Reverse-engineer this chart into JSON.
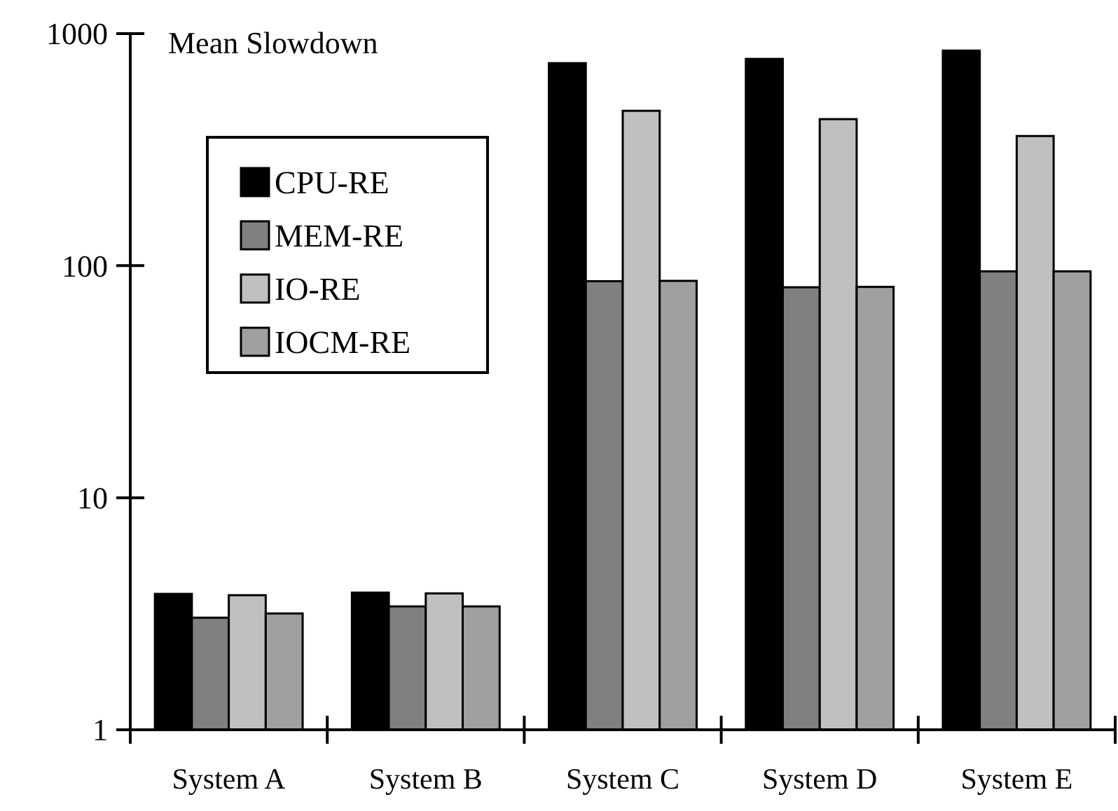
{
  "chart_data": {
    "type": "bar",
    "ylabel": "Mean Slowdown",
    "categories": [
      "System A",
      "System B",
      "System C",
      "System D",
      "System E"
    ],
    "series": [
      {
        "name": "CPU-RE",
        "color": "#000000",
        "values": [
          3.85,
          3.9,
          746,
          778,
          845
        ]
      },
      {
        "name": "MEM-RE",
        "color": "#808080",
        "values": [
          3.04,
          3.4,
          85.7,
          80.7,
          94.5
        ]
      },
      {
        "name": "IO-RE",
        "color": "#c0c0c0",
        "values": [
          3.8,
          3.87,
          465,
          428,
          362
        ]
      },
      {
        "name": "IOCM-RE",
        "color": "#a0a0a0",
        "values": [
          3.17,
          3.4,
          86,
          81,
          94.5
        ]
      }
    ],
    "log": true,
    "ylim": [
      1,
      1000
    ],
    "yticks": [
      1,
      10,
      100,
      1000
    ],
    "legend": "top left",
    "grid": false
  }
}
